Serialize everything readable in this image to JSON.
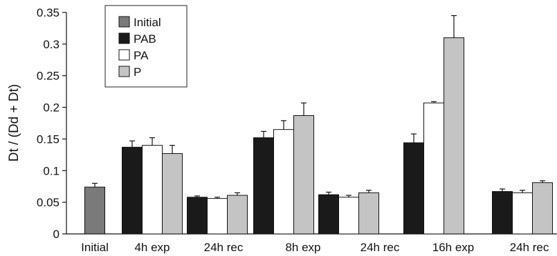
{
  "chart_data": {
    "type": "bar",
    "ylabel": "Dt / (Dd + Dt)",
    "xlabel": "",
    "ylim": [
      0,
      0.35
    ],
    "yticks": [
      0,
      0.05,
      0.1,
      0.15,
      0.2,
      0.25,
      0.3,
      0.35
    ],
    "ytick_labels": [
      "0",
      "0.05",
      "0.1",
      "0.15",
      "0.2",
      "0.25",
      "0.3",
      "0.35"
    ],
    "categories": [
      "Initial",
      "4h exp",
      "24h rec",
      "8h exp",
      "24h rec",
      "16h exp",
      "24h rec"
    ],
    "legend": {
      "placement": "top-left",
      "entries": [
        {
          "name": "Initial",
          "color": "#7a7a7a"
        },
        {
          "name": "PAB",
          "color": "#1a1a1a"
        },
        {
          "name": "PA",
          "color": "#ffffff"
        },
        {
          "name": "P",
          "color": "#c4c4c4"
        }
      ]
    },
    "series": [
      {
        "name": "Initial",
        "color": "#7a7a7a",
        "values": [
          0.074,
          null,
          null,
          null,
          null,
          null,
          null
        ],
        "errors": [
          0.006,
          null,
          null,
          null,
          null,
          null,
          null
        ]
      },
      {
        "name": "PAB",
        "color": "#1a1a1a",
        "values": [
          null,
          0.137,
          0.058,
          0.152,
          0.062,
          0.144,
          0.067
        ],
        "errors": [
          null,
          0.01,
          0.002,
          0.01,
          0.004,
          0.014,
          0.004
        ]
      },
      {
        "name": "PA",
        "color": "#ffffff",
        "values": [
          null,
          0.14,
          0.056,
          0.165,
          0.058,
          0.207,
          0.065
        ],
        "errors": [
          null,
          0.012,
          0.002,
          0.014,
          0.003,
          0.002,
          0.004
        ]
      },
      {
        "name": "P",
        "color": "#c4c4c4",
        "values": [
          null,
          0.127,
          0.061,
          0.187,
          0.065,
          0.31,
          0.081
        ],
        "errors": [
          null,
          0.013,
          0.004,
          0.02,
          0.004,
          0.035,
          0.003
        ]
      }
    ]
  }
}
